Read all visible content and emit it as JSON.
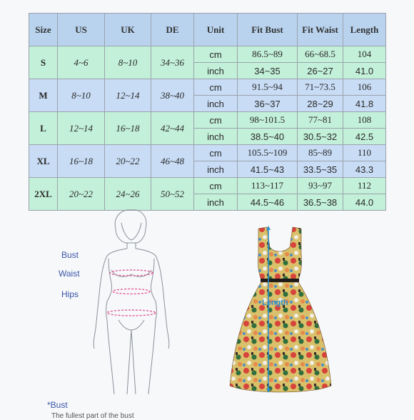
{
  "table": {
    "headers": [
      "Size",
      "US",
      "UK",
      "DE",
      "Unit",
      "Fit Bust",
      "Fit Waist",
      "Length"
    ],
    "rows": [
      {
        "size": "S",
        "us": "4~6",
        "uk": "8~10",
        "de": "34~36",
        "cm": {
          "unit": "cm",
          "bust": "86.5~89",
          "waist": "66~68.5",
          "length": "104"
        },
        "inch": {
          "unit": "inch",
          "bust": "34~35",
          "waist": "26~27",
          "length": "41.0"
        }
      },
      {
        "size": "M",
        "us": "8~10",
        "uk": "12~14",
        "de": "38~40",
        "cm": {
          "unit": "cm",
          "bust": "91.5~94",
          "waist": "71~73.5",
          "length": "106"
        },
        "inch": {
          "unit": "inch",
          "bust": "36~37",
          "waist": "28~29",
          "length": "41.8"
        }
      },
      {
        "size": "L",
        "us": "12~14",
        "uk": "16~18",
        "de": "42~44",
        "cm": {
          "unit": "cm",
          "bust": "98~101.5",
          "waist": "77~81",
          "length": "108"
        },
        "inch": {
          "unit": "inch",
          "bust": "38.5~40",
          "waist": "30.5~32",
          "length": "42.5"
        }
      },
      {
        "size": "XL",
        "us": "16~18",
        "uk": "20~22",
        "de": "46~48",
        "cm": {
          "unit": "cm",
          "bust": "105.5~109",
          "waist": "85~89",
          "length": "110"
        },
        "inch": {
          "unit": "inch",
          "bust": "41.5~43",
          "waist": "33.5~35",
          "length": "43.3"
        }
      },
      {
        "size": "2XL",
        "us": "20~22",
        "uk": "24~26",
        "de": "50~52",
        "cm": {
          "unit": "cm",
          "bust": "113~117",
          "waist": "93~97",
          "length": "112"
        },
        "inch": {
          "unit": "inch",
          "bust": "44.5~46",
          "waist": "36.5~38",
          "length": "44.0"
        }
      }
    ]
  },
  "figure": {
    "labels": {
      "bust": "Bust",
      "waist": "Waist",
      "hips": "Hips"
    },
    "length_label": "Length",
    "footnote": "*Bust",
    "footnote_sub": "The fullest part of the bust"
  },
  "colors": {
    "header": "#b9d3ee",
    "green_row": "#c3f0d8",
    "blue_row": "#c8dcf5",
    "label_blue": "#3a55a8",
    "measure_pink": "#e0609a",
    "length_blue": "#2f8fd0"
  }
}
